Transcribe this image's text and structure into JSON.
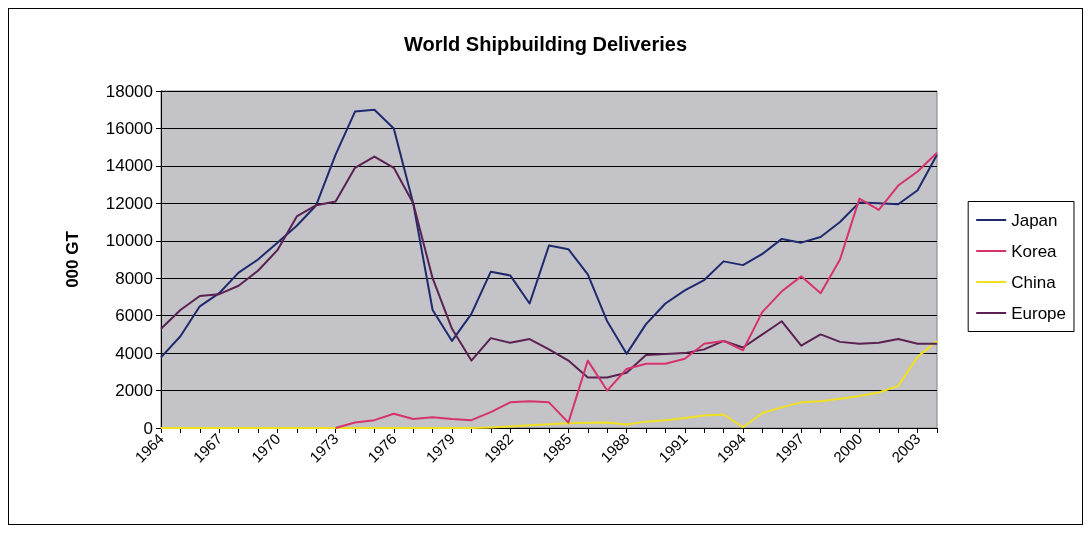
{
  "chart_data": {
    "type": "line",
    "title": "World Shipbuilding Deliveries",
    "ylabel": "000 GT",
    "categories": [
      "1964",
      null,
      null,
      "1967",
      null,
      null,
      "1970",
      null,
      null,
      "1973",
      null,
      null,
      "1976",
      null,
      null,
      "1979",
      null,
      null,
      "1982",
      null,
      null,
      "1985",
      null,
      null,
      "1988",
      null,
      null,
      "1991",
      null,
      null,
      "1994",
      null,
      null,
      "1997",
      null,
      null,
      "2000",
      null,
      null,
      "2003",
      null
    ],
    "series": [
      {
        "name": "Japan",
        "color": "#1f2a6e",
        "values": [
          3770,
          4900,
          6500,
          7200,
          8300,
          9000,
          9900,
          10800,
          11900,
          14600,
          16900,
          17000,
          16000,
          12000,
          6300,
          4650,
          6100,
          8350,
          8150,
          6650,
          9750,
          9550,
          8200,
          5700,
          3960,
          5550,
          6650,
          7350,
          7900,
          8900,
          8700,
          9300,
          10100,
          9900,
          10200,
          11000,
          12050,
          12000,
          11950,
          12700,
          14600
        ]
      },
      {
        "name": "Korea",
        "color": "#d6336c",
        "values": [
          null,
          null,
          null,
          null,
          null,
          null,
          null,
          null,
          null,
          0,
          290,
          420,
          760,
          480,
          570,
          480,
          420,
          850,
          1370,
          1430,
          1370,
          290,
          3600,
          2000,
          3150,
          3430,
          3430,
          3700,
          4500,
          4650,
          4150,
          6200,
          7300,
          8100,
          7200,
          9000,
          12250,
          11650,
          12950,
          13700,
          14700
        ]
      },
      {
        "name": "China",
        "color": "#f0e020",
        "values": [
          0,
          0,
          0,
          0,
          0,
          0,
          0,
          0,
          0,
          0,
          0,
          0,
          0,
          0,
          0,
          0,
          0,
          30,
          80,
          150,
          200,
          250,
          280,
          300,
          190,
          340,
          420,
          530,
          670,
          720,
          40,
          800,
          1100,
          1370,
          1430,
          1560,
          1710,
          1900,
          2250,
          3800,
          4650
        ]
      },
      {
        "name": "Europe",
        "color": "#5a2152",
        "values": [
          5300,
          6300,
          7050,
          7150,
          7600,
          8400,
          9500,
          11300,
          11900,
          12100,
          13900,
          14500,
          13900,
          12000,
          8000,
          5300,
          3600,
          4800,
          4550,
          4750,
          4200,
          3600,
          2700,
          2700,
          2950,
          3900,
          3950,
          4000,
          4200,
          4650,
          4300,
          5000,
          5700,
          4400,
          5000,
          4600,
          4500,
          4550,
          4750,
          4500,
          4500
        ]
      }
    ],
    "ylim": [
      0,
      18000
    ],
    "yticks": [
      0,
      2000,
      4000,
      6000,
      8000,
      10000,
      12000,
      14000,
      16000,
      18000
    ],
    "grid": "y",
    "legend": "right",
    "marker": "none",
    "line_style": "solid"
  }
}
